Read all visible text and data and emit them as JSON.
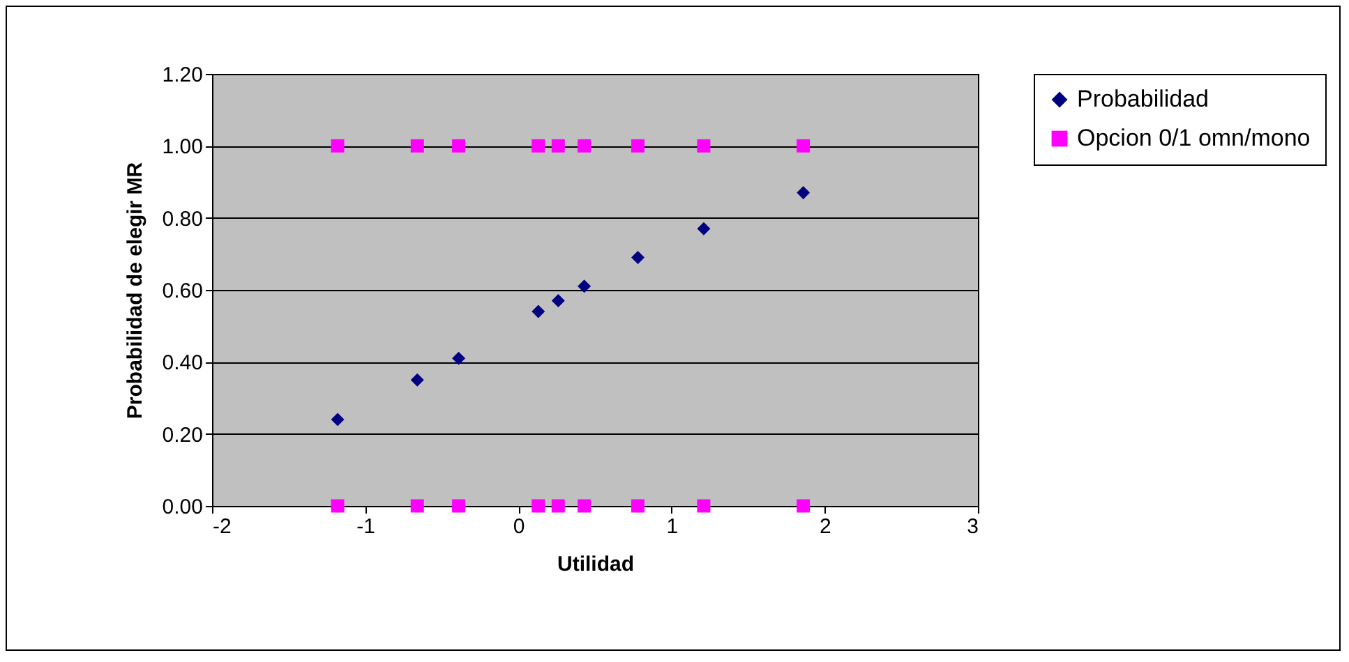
{
  "chart_data": {
    "type": "scatter",
    "xlabel": "Utilidad",
    "ylabel": "Probabilidad de elegir MR",
    "xlim": [
      -2,
      3
    ],
    "xticks": [
      -2,
      -1,
      0,
      1,
      2,
      3
    ],
    "ylim": [
      0,
      1.2
    ],
    "yticks": [
      {
        "value": 0,
        "label": "0.00"
      },
      {
        "value": 0.2,
        "label": "0.20"
      },
      {
        "value": 0.4,
        "label": "0.40"
      },
      {
        "value": 0.6,
        "label": "0.60"
      },
      {
        "value": 0.8,
        "label": "0.80"
      },
      {
        "value": 1,
        "label": "1.00"
      },
      {
        "value": 1.2,
        "label": "1.20"
      }
    ],
    "grid": "y",
    "legend": "right",
    "series": [
      {
        "name": "Probabilidad",
        "color": "#000080",
        "marker": "diamond",
        "x": [
          -1.18,
          -0.66,
          -0.39,
          0.13,
          0.26,
          0.43,
          0.78,
          1.21,
          1.86
        ],
        "values": [
          0.24,
          0.35,
          0.41,
          0.54,
          0.57,
          0.61,
          0.69,
          0.77,
          0.87
        ]
      },
      {
        "name": "Opcion 0/1 omn/mono",
        "color": "#ff00ff",
        "marker": "square",
        "x": [
          -1.18,
          -0.66,
          -0.39,
          0.13,
          0.26,
          0.43,
          0.78,
          1.21,
          1.86,
          -1.18,
          -0.66,
          -0.39,
          0.13,
          0.26,
          0.43,
          0.78,
          1.21,
          1.86
        ],
        "values": [
          1,
          1,
          1,
          1,
          1,
          1,
          1,
          1,
          1,
          0,
          0,
          0,
          0,
          0,
          0,
          0,
          0,
          0
        ]
      }
    ]
  }
}
